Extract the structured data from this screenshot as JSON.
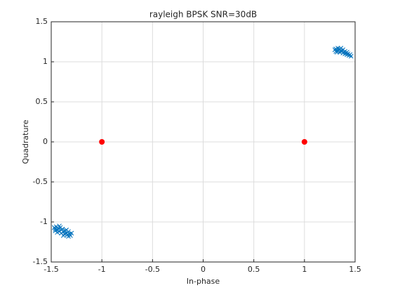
{
  "chart_data": {
    "type": "scatter",
    "title": "rayleigh BPSK SNR=30dB",
    "x_label": "In-phase",
    "y_label": "Quadrature",
    "xlim": [
      -1.5,
      1.5
    ],
    "ylim": [
      -1.5,
      1.5
    ],
    "xticks": [
      -1.5,
      -1,
      -0.5,
      0,
      0.5,
      1,
      1.5
    ],
    "yticks": [
      -1.5,
      -1,
      -0.5,
      0,
      0.5,
      1,
      1.5
    ],
    "grid": true,
    "series": [
      {
        "color": "#0072bd",
        "marker": "x",
        "x": [
          1.3,
          1.31,
          1.32,
          1.33,
          1.33,
          1.34,
          1.35,
          1.35,
          1.36,
          1.37,
          1.38,
          1.38,
          1.39,
          1.4,
          1.4,
          1.41,
          1.42,
          1.42,
          1.43,
          1.44,
          1.45,
          1.46,
          1.32,
          1.36,
          1.31,
          -1.47,
          -1.46,
          -1.45,
          -1.44,
          -1.43,
          -1.42,
          -1.41,
          -1.4,
          -1.4,
          -1.39,
          -1.38,
          -1.37,
          -1.36,
          -1.35,
          -1.34,
          -1.33,
          -1.32,
          -1.31,
          -1.3,
          -1.44,
          -1.38,
          -1.35,
          -1.42,
          -1.33,
          -1.46
        ],
        "y": [
          1.15,
          1.16,
          1.14,
          1.17,
          1.13,
          1.15,
          1.16,
          1.12,
          1.14,
          1.13,
          1.15,
          1.11,
          1.12,
          1.13,
          1.1,
          1.11,
          1.12,
          1.09,
          1.1,
          1.08,
          1.09,
          1.07,
          1.12,
          1.17,
          1.13,
          -1.07,
          -1.09,
          -1.06,
          -1.1,
          -1.08,
          -1.12,
          -1.07,
          -1.1,
          -1.14,
          -1.09,
          -1.12,
          -1.15,
          -1.11,
          -1.14,
          -1.16,
          -1.12,
          -1.15,
          -1.17,
          -1.14,
          -1.13,
          -1.17,
          -1.1,
          -1.05,
          -1.18,
          -1.11
        ]
      },
      {
        "color": "#ff0000",
        "marker": "o",
        "x": [
          -1,
          1
        ],
        "y": [
          0,
          0
        ]
      }
    ]
  }
}
